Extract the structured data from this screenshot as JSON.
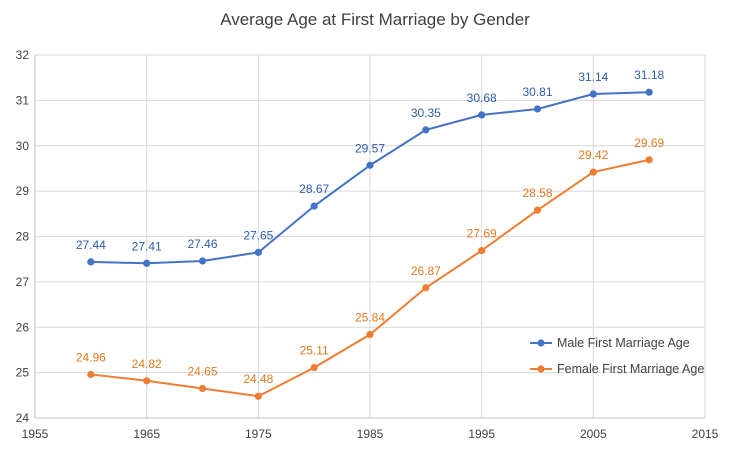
{
  "chart_data": {
    "type": "line",
    "title": "Average Age at First Marriage by Gender",
    "xlabel": "",
    "ylabel": "",
    "xlim": [
      1955,
      2015
    ],
    "ylim": [
      24,
      32
    ],
    "x_ticks": [
      1955,
      1965,
      1975,
      1985,
      1995,
      2005,
      2015
    ],
    "y_ticks": [
      24,
      25,
      26,
      27,
      28,
      29,
      30,
      31,
      32
    ],
    "grid": "horizontal",
    "legend_position": "bottom-right",
    "x": [
      1960,
      1965,
      1970,
      1975,
      1980,
      1985,
      1990,
      1995,
      2000,
      2005,
      2010
    ],
    "series": [
      {
        "name": "Male First Marriage Age",
        "color": "#4472C4",
        "label_color": "#2E5DA8",
        "values": [
          27.44,
          27.41,
          27.46,
          27.65,
          28.67,
          29.57,
          30.35,
          30.68,
          30.81,
          31.14,
          31.18
        ],
        "labels": [
          "27.44",
          "27.41",
          "27.46",
          "27.65",
          "28.67",
          "29.57",
          "30.35",
          "30.68",
          "30.81",
          "31.14",
          "31.18"
        ]
      },
      {
        "name": "Female First Marriage Age",
        "color": "#ED7D31",
        "label_color": "#E07A22",
        "values": [
          24.96,
          24.82,
          24.65,
          24.48,
          25.11,
          25.84,
          26.87,
          27.69,
          28.58,
          29.42,
          29.69
        ],
        "labels": [
          "24.96",
          "24.82",
          "24.65",
          "24.48",
          "25.11",
          "25.84",
          "26.87",
          "27.69",
          "28.58",
          "29.42",
          "29.69"
        ]
      }
    ]
  }
}
